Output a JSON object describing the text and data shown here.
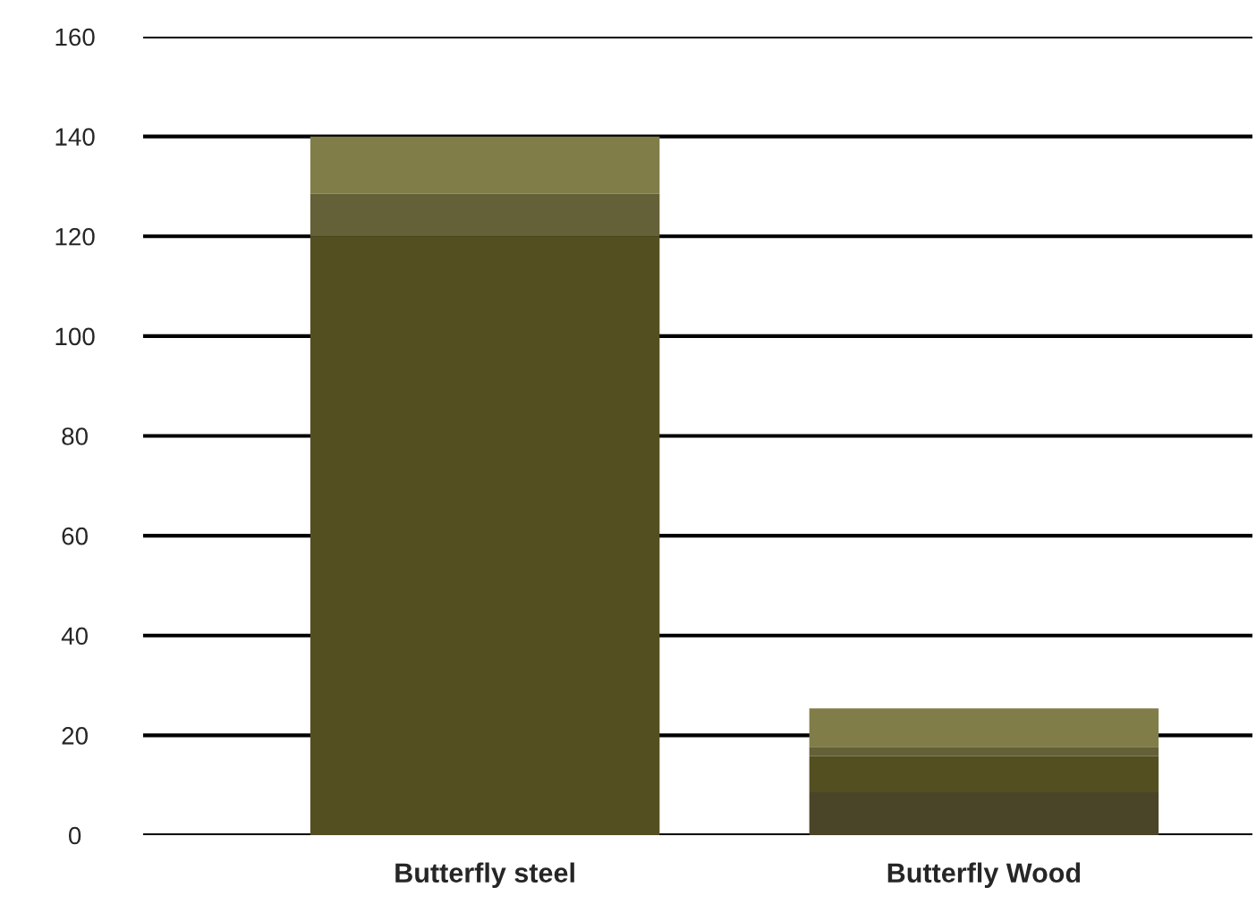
{
  "chart_data": {
    "type": "bar",
    "stacked": true,
    "categories": [
      "Butterfly steel",
      "Butterfly Wood"
    ],
    "series": [
      {
        "color": "#4a4528",
        "values": [
          0,
          8.6
        ]
      },
      {
        "color": "#534f21",
        "values": [
          120,
          7.2
        ]
      },
      {
        "color": "#646037",
        "values": [
          8.5,
          1.9
        ]
      },
      {
        "color": "#817d48",
        "values": [
          11.5,
          7.7
        ]
      }
    ],
    "ylim": [
      0,
      160
    ],
    "yticks": [
      0,
      20,
      40,
      60,
      80,
      100,
      120,
      140,
      160
    ],
    "grid": "y",
    "legend": false
  }
}
